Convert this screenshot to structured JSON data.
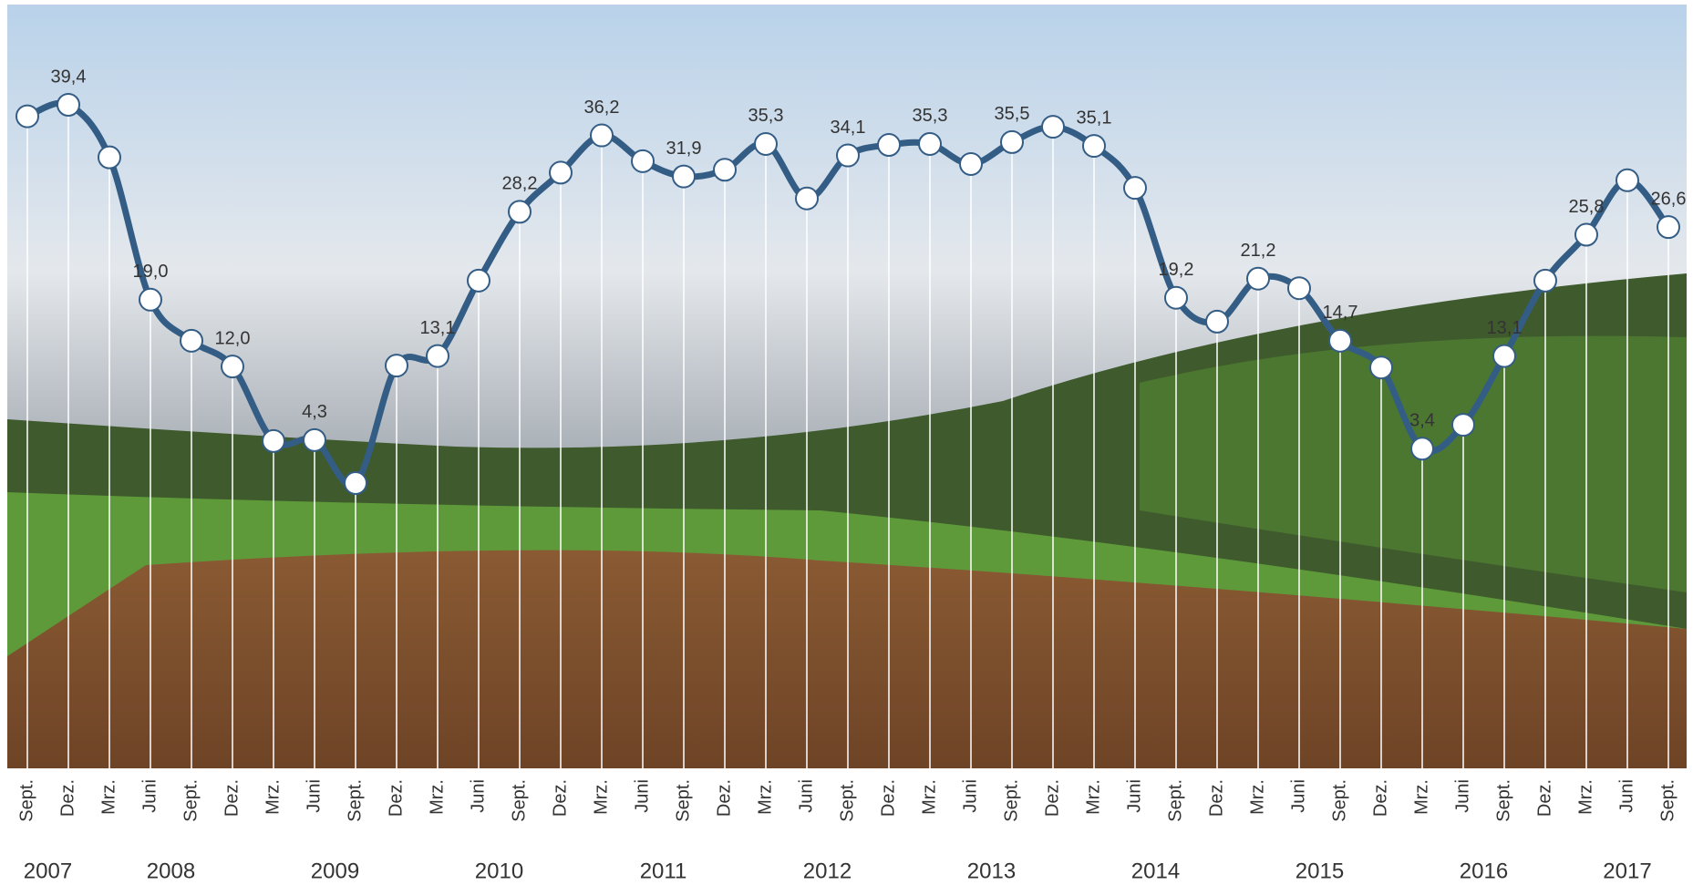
{
  "chart_data": {
    "type": "line",
    "categories": [
      "Sept.",
      "Dez.",
      "Mrz.",
      "Juni",
      "Sept.",
      "Dez.",
      "Mrz.",
      "Juni",
      "Sept.",
      "Dez.",
      "Mrz.",
      "Juni",
      "Sept.",
      "Dez.",
      "Mrz.",
      "Juni",
      "Sept.",
      "Dez.",
      "Mrz.",
      "Juni",
      "Sept.",
      "Dez.",
      "Mrz.",
      "Juni",
      "Sept.",
      "Dez.",
      "Mrz.",
      "Juni",
      "Sept.",
      "Dez.",
      "Mrz.",
      "Juni",
      "Sept.",
      "Dez.",
      "Mrz.",
      "Juni",
      "Sept.",
      "Dez.",
      "Mrz.",
      "Juni",
      "Sept."
    ],
    "years": [
      "2007",
      "2008",
      "2009",
      "2010",
      "2011",
      "2012",
      "2013",
      "2014",
      "2015",
      "2016",
      "2017"
    ],
    "values": [
      38.2,
      39.4,
      33.9,
      19.0,
      14.7,
      12.0,
      4.2,
      4.3,
      -0.2,
      12.1,
      13.1,
      21.0,
      28.2,
      32.3,
      36.2,
      33.5,
      31.9,
      32.6,
      35.3,
      29.6,
      34.1,
      35.2,
      35.3,
      33.2,
      35.5,
      37.1,
      35.1,
      30.7,
      19.2,
      16.7,
      21.2,
      20.2,
      14.7,
      11.9,
      3.4,
      5.9,
      13.1,
      21.0,
      25.8,
      31.5,
      26.6
    ],
    "value_labels": [
      null,
      "39,4",
      null,
      "19,0",
      null,
      "12,0",
      null,
      "4,3",
      null,
      null,
      "13,1",
      null,
      "28,2",
      null,
      "36,2",
      null,
      "31,9",
      null,
      "35,3",
      null,
      "34,1",
      null,
      "35,3",
      null,
      "35,5",
      null,
      "35,1",
      null,
      "19,2",
      null,
      "21,2",
      null,
      "14,7",
      null,
      "3,4",
      null,
      "13,1",
      null,
      "25,8",
      null,
      "26,6"
    ],
    "color": "#345d85"
  }
}
